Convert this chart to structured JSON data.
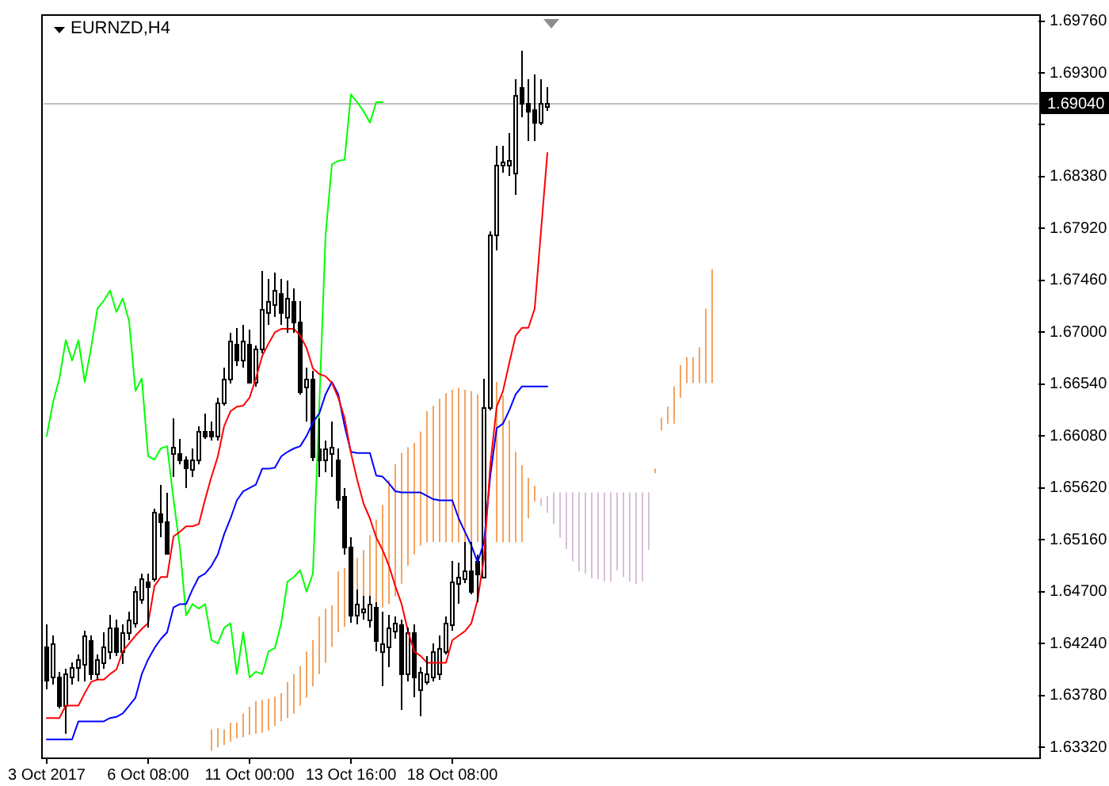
{
  "chart_data": {
    "type": "candlestick",
    "title": "EURNZD,H4",
    "categories": [
      "3 Oct 2017",
      null,
      null,
      null,
      null,
      null,
      null,
      null,
      null,
      null,
      null,
      null,
      null,
      null,
      null,
      null,
      "6 Oct 08:00",
      null,
      null,
      null,
      null,
      null,
      null,
      null,
      null,
      null,
      null,
      null,
      null,
      null,
      null,
      null,
      "11 Oct 00:00",
      null,
      null,
      null,
      null,
      null,
      null,
      null,
      null,
      null,
      null,
      null,
      null,
      null,
      null,
      null,
      "13 Oct 16:00",
      null,
      null,
      null,
      null,
      null,
      null,
      null,
      null,
      null,
      null,
      null,
      null,
      null,
      null,
      null,
      "18 Oct 08:00",
      null,
      null,
      null,
      null,
      null,
      null,
      null,
      null,
      null,
      null,
      null,
      null,
      null,
      null,
      null,
      null,
      null,
      null,
      null,
      null,
      null,
      null,
      null,
      null,
      null,
      null,
      null,
      null,
      null,
      null,
      null,
      null,
      null,
      null,
      null,
      null,
      null,
      null,
      null,
      null,
      null,
      null,
      null,
      null,
      null,
      null,
      null,
      null,
      null,
      null,
      null,
      null,
      null,
      null,
      null,
      null,
      null,
      null,
      null,
      null,
      null,
      null,
      null,
      null,
      null,
      null,
      null,
      null,
      null,
      null,
      null,
      null,
      null,
      null,
      null,
      null,
      null,
      null,
      null,
      null,
      null,
      null,
      null,
      null,
      null,
      null,
      null,
      null,
      null,
      null,
      null,
      null
    ],
    "ohlc": [
      [
        1.6421,
        1.6441,
        1.6383,
        1.6392
      ],
      [
        1.6394,
        1.6431,
        1.6387,
        1.6424
      ],
      [
        1.6394,
        1.6399,
        1.6366,
        1.6369
      ],
      [
        1.6369,
        1.6401,
        1.6344,
        1.6397
      ],
      [
        1.6394,
        1.6407,
        1.6387,
        1.6403
      ],
      [
        1.6403,
        1.6414,
        1.639,
        1.641
      ],
      [
        1.6406,
        1.6435,
        1.639,
        1.6431
      ],
      [
        1.6427,
        1.6431,
        1.6392,
        1.6397
      ],
      [
        1.6397,
        1.6414,
        1.6392,
        1.641
      ],
      [
        1.6407,
        1.6434,
        1.6401,
        1.6421
      ],
      [
        1.6417,
        1.6449,
        1.641,
        1.6438
      ],
      [
        1.6438,
        1.6445,
        1.6413,
        1.6417
      ],
      [
        1.6417,
        1.6441,
        1.6406,
        1.6434
      ],
      [
        1.6434,
        1.6452,
        1.6427,
        1.6445
      ],
      [
        1.6442,
        1.6475,
        1.6438,
        1.647
      ],
      [
        1.6463,
        1.6486,
        1.6459,
        1.6482
      ],
      [
        1.6479,
        1.6486,
        1.6438,
        1.6475
      ],
      [
        1.6482,
        1.6544,
        1.6479,
        1.6541
      ],
      [
        1.6539,
        1.6565,
        1.6518,
        1.6532
      ],
      [
        1.6532,
        1.6558,
        1.6503,
        1.6504
      ],
      [
        1.6593,
        1.6624,
        1.6572,
        1.6599
      ],
      [
        1.6593,
        1.6606,
        1.6583,
        1.6587
      ],
      [
        1.6587,
        1.659,
        1.6562,
        1.658
      ],
      [
        1.6579,
        1.6597,
        1.6572,
        1.6587
      ],
      [
        1.6587,
        1.6617,
        1.6583,
        1.6613
      ],
      [
        1.6613,
        1.6628,
        1.6606,
        1.6608
      ],
      [
        1.6613,
        1.6621,
        1.6604,
        1.6608
      ],
      [
        1.6608,
        1.6642,
        1.6604,
        1.6638
      ],
      [
        1.6638,
        1.6668,
        1.6635,
        1.6659
      ],
      [
        1.6659,
        1.67,
        1.6655,
        1.6693
      ],
      [
        1.669,
        1.6704,
        1.667,
        1.6675
      ],
      [
        1.6675,
        1.6707,
        1.6668,
        1.6693
      ],
      [
        1.669,
        1.6703,
        1.6655,
        1.6656
      ],
      [
        1.6656,
        1.6689,
        1.6652,
        1.6686
      ],
      [
        1.6686,
        1.6755,
        1.6682,
        1.6721
      ],
      [
        1.6718,
        1.6748,
        1.6707,
        1.6728
      ],
      [
        1.6725,
        1.6753,
        1.6714,
        1.6737
      ],
      [
        1.6735,
        1.6748,
        1.6707,
        1.6718
      ],
      [
        1.6714,
        1.6746,
        1.67,
        1.673
      ],
      [
        1.6728,
        1.6739,
        1.67,
        1.671
      ],
      [
        1.671,
        1.6728,
        1.6645,
        1.6648
      ],
      [
        1.6652,
        1.6668,
        1.6621,
        1.6659
      ],
      [
        1.6659,
        1.6666,
        1.6586,
        1.659
      ],
      [
        1.6597,
        1.6624,
        1.6572,
        1.6587
      ],
      [
        1.6587,
        1.6604,
        1.6576,
        1.6597
      ],
      [
        1.6593,
        1.6621,
        1.6572,
        1.6599
      ],
      [
        1.6587,
        1.6597,
        1.6544,
        1.6552
      ],
      [
        1.6555,
        1.6562,
        1.6503,
        1.651
      ],
      [
        1.651,
        1.6518,
        1.6442,
        1.6449
      ],
      [
        1.6449,
        1.6472,
        1.6441,
        1.6459
      ],
      [
        1.6452,
        1.6466,
        1.6445,
        1.6455
      ],
      [
        1.6445,
        1.6466,
        1.6438,
        1.6459
      ],
      [
        1.6456,
        1.6461,
        1.6417,
        1.6427
      ],
      [
        1.6417,
        1.6452,
        1.6386,
        1.6424
      ],
      [
        1.6421,
        1.6449,
        1.6403,
        1.6438
      ],
      [
        1.6435,
        1.6448,
        1.6428,
        1.6442
      ],
      [
        1.6441,
        1.6445,
        1.6365,
        1.6397
      ],
      [
        1.6397,
        1.6438,
        1.639,
        1.6434
      ],
      [
        1.6434,
        1.6441,
        1.6376,
        1.6394
      ],
      [
        1.6383,
        1.6403,
        1.6359,
        1.6399
      ],
      [
        1.639,
        1.6413,
        1.6387,
        1.6397
      ],
      [
        1.6394,
        1.6424,
        1.639,
        1.6417
      ],
      [
        1.6397,
        1.6431,
        1.6392,
        1.642
      ],
      [
        1.6417,
        1.6448,
        1.6414,
        1.6442
      ],
      [
        1.6441,
        1.6497,
        1.6435,
        1.6479
      ],
      [
        1.6477,
        1.6496,
        1.6459,
        1.6483
      ],
      [
        1.6482,
        1.6514,
        1.6477,
        1.6489
      ],
      [
        1.6489,
        1.6514,
        1.6468,
        1.647
      ],
      [
        1.6497,
        1.6503,
        1.6461,
        1.6486
      ],
      [
        1.6483,
        1.6659,
        1.6482,
        1.6634
      ],
      [
        1.6634,
        1.679,
        1.6631,
        1.6786
      ],
      [
        1.6786,
        1.6866,
        1.6772,
        1.6849
      ],
      [
        1.6849,
        1.6866,
        1.6841,
        1.6852
      ],
      [
        1.6849,
        1.6877,
        1.6838,
        1.6853
      ],
      [
        1.6841,
        1.6925,
        1.6822,
        1.6911
      ],
      [
        1.6917,
        1.6949,
        1.6891,
        1.6904
      ],
      [
        1.6904,
        1.6925,
        1.687,
        1.6896
      ],
      [
        1.6897,
        1.6928,
        1.687,
        1.6886
      ],
      [
        1.6886,
        1.6924,
        1.6884,
        1.6904
      ],
      [
        1.69,
        1.6917,
        1.6896,
        1.6904
      ],
      null,
      null,
      null,
      null,
      null,
      null,
      null,
      null,
      null,
      null,
      null,
      null,
      null,
      null,
      null,
      null,
      null,
      null,
      null,
      null,
      null,
      null,
      null,
      null,
      null,
      null,
      null,
      null,
      null,
      null,
      null,
      null,
      null,
      null,
      null,
      null,
      null,
      null,
      null,
      null,
      null,
      null,
      null,
      null,
      null,
      null,
      null,
      null,
      null,
      null,
      null,
      null,
      null,
      null,
      null,
      null,
      null,
      null,
      null,
      null,
      null,
      null,
      null,
      null,
      null,
      null,
      null,
      null,
      null,
      null,
      null,
      null,
      null,
      null,
      null,
      null,
      null
    ],
    "series": [
      {
        "type": "line",
        "color": "#ff0000",
        "values": [
          1.6358,
          1.6358,
          1.6358,
          1.6369,
          1.6369,
          1.6369,
          1.638,
          1.639,
          1.6392,
          1.6392,
          1.6397,
          1.6401,
          1.6417,
          1.6424,
          1.6431,
          1.6437,
          1.6442,
          1.6475,
          1.6483,
          1.6483,
          1.6519,
          1.6523,
          1.6528,
          1.6528,
          1.653,
          1.6552,
          1.6572,
          1.659,
          1.6617,
          1.663,
          1.6634,
          1.6635,
          1.6642,
          1.6659,
          1.6679,
          1.669,
          1.67,
          1.6703,
          1.6703,
          1.6703,
          1.6697,
          1.6686,
          1.6668,
          1.6663,
          1.6661,
          1.6655,
          1.6642,
          1.6624,
          1.6593,
          1.6569,
          1.6548,
          1.6535,
          1.6518,
          1.6507,
          1.6493,
          1.6475,
          1.6459,
          1.6435,
          1.6417,
          1.6413,
          1.6407,
          1.6407,
          1.6407,
          1.6407,
          1.6427,
          1.6431,
          1.6435,
          1.6442,
          1.6463,
          1.65,
          1.6583,
          1.6634,
          1.6648,
          1.6673,
          1.6697,
          1.6704,
          1.6704,
          1.6721,
          1.679,
          1.6859,
          null,
          null,
          null,
          null,
          null,
          null,
          null,
          null,
          null,
          null,
          null,
          null,
          null,
          null,
          null,
          null,
          null,
          null,
          null,
          null,
          null,
          null,
          null,
          null,
          null,
          null,
          null,
          null,
          null,
          null,
          null,
          null,
          null,
          null,
          null,
          null,
          null,
          null,
          null,
          null,
          null,
          null,
          null,
          null,
          null,
          null,
          null,
          null,
          null,
          null,
          null,
          null,
          null,
          null,
          null,
          null,
          null,
          null,
          null,
          null,
          null,
          null,
          null,
          null,
          null,
          null,
          null,
          null,
          null,
          null,
          null,
          null,
          null,
          null,
          null,
          null,
          null
        ]
      },
      {
        "type": "line",
        "color": "#0000ff",
        "values": [
          1.6339,
          1.6339,
          1.6339,
          1.6339,
          1.6339,
          1.6355,
          1.6355,
          1.6355,
          1.6355,
          1.6355,
          1.6358,
          1.6359,
          1.6362,
          1.6369,
          1.6376,
          1.6397,
          1.641,
          1.642,
          1.6428,
          1.6434,
          1.6456,
          1.6459,
          1.6459,
          1.6472,
          1.6483,
          1.6486,
          1.6493,
          1.6503,
          1.6521,
          1.6535,
          1.6551,
          1.6559,
          1.6562,
          1.6565,
          1.6579,
          1.6579,
          1.658,
          1.659,
          1.6594,
          1.6597,
          1.6599,
          1.6608,
          1.662,
          1.6628,
          1.6645,
          1.6656,
          1.6645,
          1.6617,
          1.6594,
          1.6593,
          1.6593,
          1.6593,
          1.6573,
          1.6572,
          1.6566,
          1.6559,
          1.6558,
          1.6558,
          1.6558,
          1.6558,
          1.6555,
          1.6552,
          1.6551,
          1.6551,
          1.6551,
          1.6535,
          1.6523,
          1.6511,
          1.6496,
          1.6514,
          1.6573,
          1.6615,
          1.6619,
          1.6631,
          1.6645,
          1.6652,
          1.6652,
          1.6652,
          1.6652,
          1.6652,
          null,
          null,
          null,
          null,
          null,
          null,
          null,
          null,
          null,
          null,
          null,
          null,
          null,
          null,
          null,
          null,
          null,
          null,
          null,
          null,
          null,
          null,
          null,
          null,
          null,
          null,
          null,
          null,
          null,
          null,
          null,
          null,
          null,
          null,
          null,
          null,
          null,
          null,
          null,
          null,
          null,
          null,
          null,
          null,
          null,
          null,
          null,
          null,
          null,
          null,
          null,
          null,
          null,
          null,
          null,
          null,
          null,
          null,
          null,
          null,
          null,
          null,
          null,
          null,
          null,
          null,
          null,
          null,
          null,
          null,
          null,
          null,
          null,
          null,
          null,
          null,
          null
        ]
      },
      {
        "type": "line",
        "color": "#00ff00",
        "values": [
          1.6608,
          1.6638,
          1.6659,
          1.6693,
          1.6675,
          1.6693,
          1.6656,
          1.6686,
          1.6721,
          1.6728,
          1.6737,
          1.6718,
          1.673,
          1.671,
          1.6648,
          1.6659,
          1.659,
          1.6587,
          1.6597,
          1.6599,
          1.6552,
          1.651,
          1.6449,
          1.6459,
          1.6455,
          1.6459,
          1.6427,
          1.6424,
          1.6438,
          1.6442,
          1.6397,
          1.6434,
          1.6394,
          1.6399,
          1.6397,
          1.6417,
          1.642,
          1.6442,
          1.6479,
          1.6483,
          1.6489,
          1.647,
          1.6486,
          1.6634,
          1.6786,
          1.6849,
          1.6852,
          1.6853,
          1.6911,
          1.6904,
          1.6896,
          1.6886,
          1.6904,
          1.6904,
          null,
          null,
          null,
          null,
          null,
          null,
          null,
          null,
          null,
          null,
          null,
          null,
          null,
          null,
          null,
          null,
          null,
          null,
          null,
          null,
          null,
          null,
          null,
          null,
          null,
          null,
          null,
          null,
          null,
          null,
          null,
          null,
          null,
          null,
          null,
          null,
          null,
          null,
          null,
          null,
          null,
          null,
          null,
          null,
          null,
          null,
          null,
          null,
          null,
          null,
          null,
          null,
          null,
          null,
          null,
          null,
          null,
          null,
          null,
          null,
          null,
          null,
          null,
          null,
          null,
          null,
          null,
          null,
          null,
          null,
          null,
          null,
          null,
          null,
          null,
          null,
          null,
          null,
          null,
          null,
          null,
          null,
          null,
          null,
          null,
          null,
          null,
          null,
          null,
          null,
          null,
          null,
          null,
          null,
          null,
          null,
          null,
          null,
          null,
          null,
          null,
          null,
          null
        ]
      },
      {
        "type": "bar",
        "base": [
          null,
          null,
          null,
          null,
          null,
          null,
          null,
          null,
          null,
          null,
          null,
          null,
          null,
          null,
          null,
          null,
          null,
          null,
          null,
          null,
          null,
          null,
          null,
          null,
          null,
          null,
          1.6329,
          1.6332,
          1.6334,
          1.6337,
          1.634,
          1.6341,
          1.6343,
          1.6344,
          1.6345,
          1.6347,
          1.6351,
          1.6355,
          1.6358,
          1.6362,
          1.6369,
          1.6376,
          1.6386,
          1.6397,
          1.6407,
          1.6421,
          1.6434,
          1.6439,
          null,
          1.6446,
          1.6449,
          1.6452,
          1.6455,
          1.6456,
          1.6459,
          1.6466,
          1.6477,
          1.6493,
          1.6503,
          1.6511,
          1.6514,
          1.6514,
          1.6514,
          1.6514,
          1.6514,
          1.6514,
          1.6514,
          1.6514,
          1.6514,
          null,
          null,
          1.6514,
          1.6514,
          1.6514,
          1.6514,
          1.6514,
          1.6535,
          1.655,
          1.6546,
          1.654,
          1.653,
          1.6518,
          1.6508,
          1.6497,
          1.6488,
          1.6486,
          1.6482,
          1.6481,
          1.6479,
          1.6479,
          1.6489,
          1.6483,
          1.6479,
          1.6477,
          1.6479,
          1.6507,
          1.6575,
          1.6613,
          1.6619,
          1.6619,
          1.6642,
          1.6655,
          1.6655,
          1.6655,
          1.6655,
          1.6655,
          null,
          null,
          null,
          null,
          null,
          null,
          null,
          null,
          null,
          null,
          null,
          null,
          null,
          null,
          null,
          null,
          null,
          null,
          null,
          null,
          null,
          null,
          null,
          null,
          null,
          null,
          null,
          null,
          null,
          null,
          null,
          null,
          null,
          null,
          null,
          null,
          null,
          null,
          null,
          null,
          null,
          null,
          null,
          null,
          null,
          null,
          null,
          null,
          null,
          null,
          null
        ],
        "values": [
          null,
          null,
          null,
          null,
          null,
          null,
          null,
          null,
          null,
          null,
          null,
          null,
          null,
          null,
          null,
          null,
          null,
          null,
          null,
          null,
          null,
          null,
          null,
          null,
          null,
          null,
          0.0019,
          0.0017,
          0.0014,
          0.0017,
          0.0014,
          0.0021,
          0.0025,
          0.0029,
          0.0029,
          0.0028,
          0.0026,
          0.0025,
          0.0032,
          0.0035,
          0.0035,
          0.0041,
          0.0041,
          0.0051,
          0.0048,
          0.0037,
          0.0054,
          0.0052,
          null,
          0.0054,
          0.0058,
          0.0068,
          0.0079,
          0.0091,
          0.011,
          0.0117,
          0.0116,
          0.0105,
          0.0099,
          0.0101,
          0.0116,
          0.0121,
          0.0127,
          0.0132,
          0.0135,
          0.0137,
          0.0135,
          0.0134,
          0.0131,
          null,
          null,
          0.0142,
          0.013,
          0.0108,
          0.008,
          0.0068,
          0.0036,
          0.0014,
          0.0007,
          0.0015,
          0.0028,
          0.004,
          0.005,
          0.0061,
          0.007,
          0.0072,
          0.0076,
          0.0077,
          0.0079,
          0.0079,
          0.0069,
          0.0075,
          0.0079,
          0.0081,
          0.0079,
          0.0051,
          0.0004,
          0.0011,
          0.0015,
          0.0033,
          0.0029,
          0.0023,
          0.0023,
          0.0032,
          0.0066,
          0.0101,
          null,
          null,
          null,
          null,
          null,
          null,
          null,
          null,
          null,
          null,
          null,
          null,
          null,
          null,
          null,
          null,
          null,
          null,
          null,
          null,
          null,
          null,
          null,
          null,
          null,
          null,
          null,
          null,
          null,
          null,
          null,
          null,
          null,
          null,
          null,
          null,
          null,
          null,
          null,
          null,
          null,
          null,
          null,
          null,
          null,
          null,
          null,
          null,
          null,
          null,
          null
        ],
        "colors": [
          null,
          null,
          null,
          null,
          null,
          null,
          null,
          null,
          null,
          null,
          null,
          null,
          null,
          null,
          null,
          null,
          null,
          null,
          null,
          null,
          null,
          null,
          null,
          null,
          null,
          null,
          "#f4a460",
          "#f4a460",
          "#f4a460",
          "#f4a460",
          "#f4a460",
          "#f4a460",
          "#f4a460",
          "#f4a460",
          "#f4a460",
          "#f4a460",
          "#f4a460",
          "#f4a460",
          "#f4a460",
          "#f4a460",
          "#f4a460",
          "#f4a460",
          "#f4a460",
          "#f4a460",
          "#f4a460",
          "#f4a460",
          "#f4a460",
          "#f4a460",
          null,
          "#f4a460",
          "#f4a460",
          "#f4a460",
          "#f4a460",
          "#f4a460",
          "#f4a460",
          "#f4a460",
          "#f4a460",
          "#f4a460",
          "#f4a460",
          "#f4a460",
          "#f4a460",
          "#f4a460",
          "#f4a460",
          "#f4a460",
          "#f4a460",
          "#f4a460",
          "#f4a460",
          "#f4a460",
          "#f4a460",
          null,
          null,
          "#f4a460",
          "#f4a460",
          "#f4a460",
          "#f4a460",
          "#f4a460",
          "#f4a460",
          "#f4a460",
          "#d8bfd8",
          "#d8bfd8",
          "#d8bfd8",
          "#d8bfd8",
          "#d8bfd8",
          "#d8bfd8",
          "#d8bfd8",
          "#d8bfd8",
          "#d8bfd8",
          "#d8bfd8",
          "#d8bfd8",
          "#d8bfd8",
          "#d8bfd8",
          "#d8bfd8",
          "#d8bfd8",
          "#d8bfd8",
          "#d8bfd8",
          "#d8bfd8",
          "#f4a460",
          "#f4a460",
          "#f4a460",
          "#f4a460",
          "#f4a460",
          "#f4a460",
          "#f4a460",
          "#f4a460",
          "#f4a460",
          "#f4a460",
          null,
          null,
          null,
          null,
          null,
          null,
          null,
          null,
          null,
          null,
          null,
          null,
          null,
          null,
          null,
          null,
          null,
          null,
          null,
          null,
          null,
          null,
          null,
          null,
          null,
          null,
          null,
          null,
          null,
          null,
          null,
          null,
          null,
          null,
          null,
          null,
          null,
          null,
          null,
          null,
          null,
          null,
          null,
          null,
          null,
          null,
          null,
          null,
          null,
          null,
          null
        ]
      }
    ],
    "ylim": [
      1.6323,
      1.6982
    ],
    "yticks": [
      {
        "value": 1.6332,
        "label": "1.63320"
      },
      {
        "value": 1.6378,
        "label": "1.63780"
      },
      {
        "value": 1.6424,
        "label": "1.64240"
      },
      {
        "value": 1.647,
        "label": "1.64700"
      },
      {
        "value": 1.6516,
        "label": "1.65160"
      },
      {
        "value": 1.6562,
        "label": "1.65620"
      },
      {
        "value": 1.6608,
        "label": "1.66080"
      },
      {
        "value": 1.6654,
        "label": "1.66540"
      },
      {
        "value": 1.67,
        "label": "1.67000"
      },
      {
        "value": 1.6746,
        "label": "1.67460"
      },
      {
        "value": 1.6792,
        "label": "1.67920"
      },
      {
        "value": 1.6838,
        "label": "1.68380"
      },
      {
        "value": 1.6884,
        "label": null
      },
      {
        "value": 1.693,
        "label": "1.69300"
      },
      {
        "value": 1.6976,
        "label": "1.69760"
      }
    ],
    "ref_lines": [
      {
        "axis": "y",
        "value": 1.6904,
        "label": "1.69040",
        "color": "#c0c0c0"
      }
    ]
  }
}
